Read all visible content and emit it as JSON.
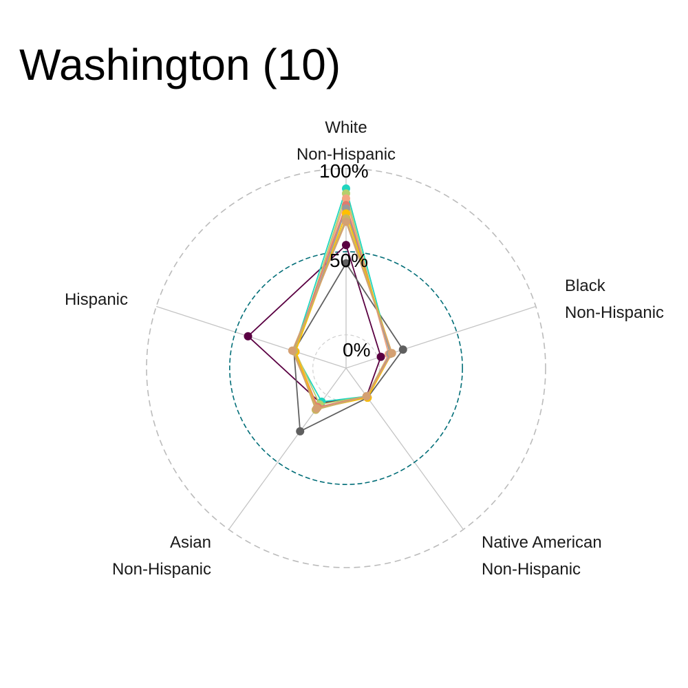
{
  "title": "Washington (10)",
  "chart_data": {
    "type": "radar",
    "title": "Washington (10)",
    "axes": [
      {
        "label_lines": [
          "White",
          "Non-Hispanic"
        ],
        "anchor": "middle"
      },
      {
        "label_lines": [
          "Black",
          "Non-Hispanic"
        ],
        "anchor": "start"
      },
      {
        "label_lines": [
          "Native American",
          "Non-Hispanic"
        ],
        "anchor": "start"
      },
      {
        "label_lines": [
          "Asian",
          "Non-Hispanic"
        ],
        "anchor": "end"
      },
      {
        "label_lines": [
          "Hispanic"
        ],
        "anchor": "end"
      }
    ],
    "radial_ticks": [
      {
        "value": 0,
        "label": "0%"
      },
      {
        "value": 50,
        "label": "50%"
      },
      {
        "value": 100,
        "label": "100%"
      }
    ],
    "rlim": [
      -20,
      100
    ],
    "reference_circle_color": "#006d77",
    "outer_circle_color": "#bbbbbb",
    "series": [
      {
        "color": "#5a0042",
        "values": [
          54,
          2,
          1,
          6,
          42
        ]
      },
      {
        "color": "#5f5f5f",
        "values": [
          43,
          16,
          2,
          27,
          13
        ]
      },
      {
        "color": "#20d5bf",
        "values": [
          88,
          8,
          1,
          5,
          13
        ]
      },
      {
        "color": "#b5cf6b",
        "values": [
          85,
          7,
          1,
          7,
          12
        ]
      },
      {
        "color": "#f4a582",
        "values": [
          82,
          7,
          2,
          9,
          12
        ]
      },
      {
        "color": "#e07b6e",
        "values": [
          78,
          8,
          1,
          9,
          13
        ]
      },
      {
        "color": "#9a9a9a",
        "values": [
          76,
          8,
          2,
          10,
          12
        ]
      },
      {
        "color": "#ffc000",
        "values": [
          73,
          9,
          2,
          10,
          12
        ]
      },
      {
        "color": "#c8b560",
        "values": [
          70,
          9,
          1,
          11,
          13
        ]
      },
      {
        "color": "#d4a072",
        "values": [
          68,
          9,
          1,
          10,
          14
        ]
      }
    ]
  }
}
